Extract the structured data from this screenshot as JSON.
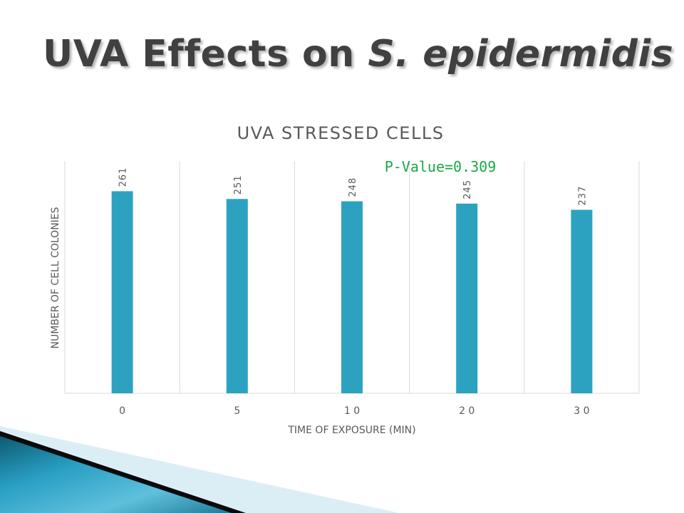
{
  "slide": {
    "title_main": "UVA Effects on ",
    "title_italic": "S. epidermidis"
  },
  "annotation": {
    "text": "P-Value=0.309",
    "color": "#1aa84a"
  },
  "colors": {
    "bar": "#2ca2c0",
    "title_text": "#404040",
    "grid": "#d9d9d9",
    "axis_text": "#595959",
    "decor_dark": "#0f5f78",
    "decor_light": "#dff1f7"
  },
  "chart_data": {
    "type": "bar",
    "title": "UVA STRESSED CELLS",
    "xlabel": "TIME OF EXPOSURE (MIN)",
    "ylabel": "NUMBER OF CELL COLONIES",
    "categories": [
      "0",
      "5",
      "1 0",
      "2 0",
      "3 0"
    ],
    "values": [
      261,
      251,
      248,
      245,
      237
    ],
    "data_labels": [
      "261",
      "251",
      "248",
      "245",
      "237"
    ],
    "ylim": [
      0,
      300
    ],
    "grid": "vertical",
    "legend": "none"
  }
}
